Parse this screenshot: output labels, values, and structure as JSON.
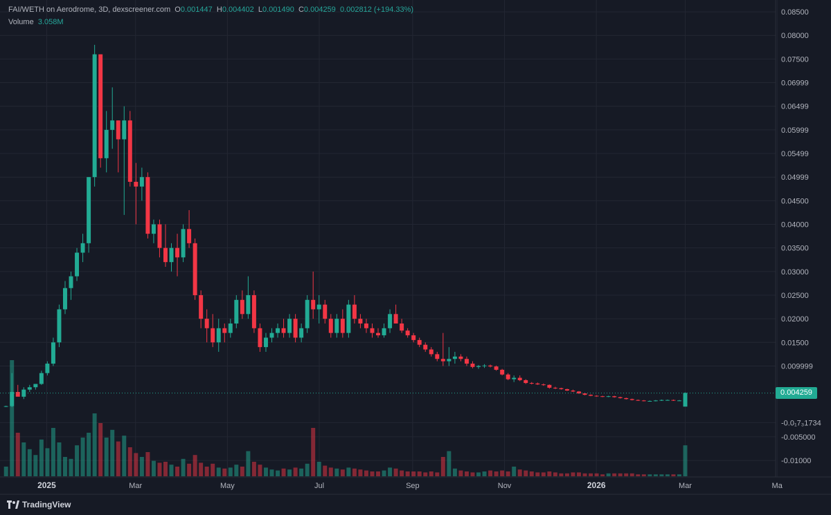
{
  "legend": {
    "title": "FAI/WETH on Aerodrome, 3D, dexscreener.com",
    "o_label": "O",
    "o_value": "0.001447",
    "h_label": "H",
    "h_value": "0.004402",
    "l_label": "L",
    "l_value": "0.001490",
    "c_label": "C",
    "c_value": "0.004259",
    "change": "0.002812 (+194.33%)",
    "volume_label": "Volume",
    "volume_value": "3.058M"
  },
  "price_tag": "0.004259",
  "brand": "TradingView",
  "colors": {
    "up": "#22ab94",
    "down": "#f23645",
    "bg": "#161a25",
    "grid": "#232733"
  },
  "chart_data": {
    "type": "candlestick",
    "y_axis": {
      "range": [
        -0.0135,
        0.0875
      ],
      "ticks": [
        {
          "value": 0.085,
          "label": "0.08500"
        },
        {
          "value": 0.08,
          "label": "0.08000"
        },
        {
          "value": 0.075,
          "label": "0.07500"
        },
        {
          "value": 0.07,
          "label": "0.06999"
        },
        {
          "value": 0.065,
          "label": "0.06499"
        },
        {
          "value": 0.06,
          "label": "0.05999"
        },
        {
          "value": 0.055,
          "label": "0.05499"
        },
        {
          "value": 0.05,
          "label": "0.04999"
        },
        {
          "value": 0.045,
          "label": "0.04500"
        },
        {
          "value": 0.04,
          "label": "0.04000"
        },
        {
          "value": 0.035,
          "label": "0.03500"
        },
        {
          "value": 0.03,
          "label": "0.03000"
        },
        {
          "value": 0.025,
          "label": "0.02500"
        },
        {
          "value": 0.02,
          "label": "0.02000"
        },
        {
          "value": 0.015,
          "label": "0.01500"
        },
        {
          "value": 0.01,
          "label": "0.009999"
        },
        {
          "value": -0.002,
          "label": "-0.0₁7₃1734"
        },
        {
          "value": -0.005,
          "label": "-0.005000"
        },
        {
          "value": -0.01,
          "label": "-0.01000"
        }
      ]
    },
    "x_axis": {
      "start": "2024-12-01",
      "end": "2026-04-30",
      "ticks": [
        {
          "date": "2025-01-01",
          "label": "2025",
          "bold": true
        },
        {
          "date": "2025-03-01",
          "label": "Mar",
          "bold": false
        },
        {
          "date": "2025-05-01",
          "label": "May",
          "bold": false
        },
        {
          "date": "2025-07-01",
          "label": "Jul",
          "bold": false
        },
        {
          "date": "2025-09-01",
          "label": "Sep",
          "bold": false
        },
        {
          "date": "2025-11-01",
          "label": "Nov",
          "bold": false
        },
        {
          "date": "2026-01-01",
          "label": "2026",
          "bold": true
        },
        {
          "date": "2026-03-01",
          "label": "Mar",
          "bold": false
        },
        {
          "date": "2026-05-01",
          "label": "Ma",
          "bold": false
        }
      ]
    },
    "last_price": 0.004259,
    "interval": "3D",
    "first_candle": "2024-12-05",
    "candles": [
      [
        0.0015,
        0.0016,
        0.0013,
        0.0015,
        1.0
      ],
      [
        0.0015,
        0.0085,
        0.0013,
        0.0045,
        12.0
      ],
      [
        0.0045,
        0.006,
        0.004,
        0.0035,
        4.5
      ],
      [
        0.0035,
        0.0055,
        0.003,
        0.005,
        3.5
      ],
      [
        0.005,
        0.006,
        0.0045,
        0.0055,
        2.8
      ],
      [
        0.0055,
        0.006,
        0.005,
        0.0062,
        2.2
      ],
      [
        0.0062,
        0.009,
        0.006,
        0.0085,
        3.8
      ],
      [
        0.0085,
        0.011,
        0.008,
        0.0105,
        2.9
      ],
      [
        0.0105,
        0.016,
        0.01,
        0.015,
        5.0
      ],
      [
        0.015,
        0.023,
        0.014,
        0.022,
        3.5
      ],
      [
        0.022,
        0.028,
        0.021,
        0.0265,
        2.0
      ],
      [
        0.0265,
        0.03,
        0.024,
        0.029,
        1.8
      ],
      [
        0.029,
        0.035,
        0.028,
        0.034,
        3.2
      ],
      [
        0.034,
        0.038,
        0.032,
        0.036,
        4.0
      ],
      [
        0.036,
        0.05,
        0.034,
        0.05,
        4.5
      ],
      [
        0.05,
        0.078,
        0.048,
        0.076,
        6.5
      ],
      [
        0.076,
        0.076,
        0.052,
        0.054,
        5.5
      ],
      [
        0.054,
        0.064,
        0.051,
        0.06,
        4.0
      ],
      [
        0.06,
        0.069,
        0.056,
        0.062,
        4.8
      ],
      [
        0.062,
        0.062,
        0.051,
        0.058,
        3.6
      ],
      [
        0.058,
        0.065,
        0.042,
        0.062,
        4.2
      ],
      [
        0.062,
        0.064,
        0.048,
        0.049,
        3.0
      ],
      [
        0.049,
        0.053,
        0.04,
        0.048,
        2.4
      ],
      [
        0.048,
        0.052,
        0.045,
        0.05,
        2.0
      ],
      [
        0.05,
        0.051,
        0.037,
        0.038,
        2.5
      ],
      [
        0.038,
        0.041,
        0.036,
        0.04,
        1.6
      ],
      [
        0.04,
        0.041,
        0.033,
        0.035,
        1.4
      ],
      [
        0.035,
        0.04,
        0.031,
        0.032,
        1.5
      ],
      [
        0.032,
        0.036,
        0.03,
        0.035,
        1.2
      ],
      [
        0.035,
        0.038,
        0.029,
        0.033,
        1.0
      ],
      [
        0.033,
        0.04,
        0.032,
        0.039,
        1.8
      ],
      [
        0.039,
        0.043,
        0.035,
        0.036,
        1.3
      ],
      [
        0.036,
        0.037,
        0.024,
        0.025,
        2.2
      ],
      [
        0.025,
        0.026,
        0.018,
        0.02,
        1.4
      ],
      [
        0.02,
        0.022,
        0.015,
        0.018,
        1.0
      ],
      [
        0.018,
        0.021,
        0.014,
        0.015,
        1.3
      ],
      [
        0.015,
        0.02,
        0.013,
        0.018,
        0.9
      ],
      [
        0.018,
        0.019,
        0.015,
        0.017,
        0.8
      ],
      [
        0.017,
        0.02,
        0.016,
        0.019,
        0.9
      ],
      [
        0.019,
        0.025,
        0.018,
        0.024,
        1.2
      ],
      [
        0.024,
        0.026,
        0.02,
        0.021,
        1.0
      ],
      [
        0.021,
        0.029,
        0.02,
        0.025,
        2.6
      ],
      [
        0.025,
        0.026,
        0.017,
        0.018,
        1.5
      ],
      [
        0.018,
        0.019,
        0.013,
        0.014,
        1.2
      ],
      [
        0.014,
        0.017,
        0.013,
        0.016,
        0.9
      ],
      [
        0.016,
        0.018,
        0.015,
        0.017,
        0.7
      ],
      [
        0.017,
        0.019,
        0.016,
        0.018,
        0.6
      ],
      [
        0.018,
        0.02,
        0.016,
        0.017,
        0.8
      ],
      [
        0.017,
        0.021,
        0.016,
        0.02,
        0.7
      ],
      [
        0.02,
        0.021,
        0.015,
        0.016,
        0.9
      ],
      [
        0.016,
        0.019,
        0.015,
        0.018,
        0.8
      ],
      [
        0.018,
        0.025,
        0.017,
        0.024,
        1.3
      ],
      [
        0.024,
        0.03,
        0.02,
        0.022,
        5.0
      ],
      [
        0.022,
        0.025,
        0.019,
        0.023,
        1.5
      ],
      [
        0.023,
        0.024,
        0.019,
        0.02,
        1.1
      ],
      [
        0.02,
        0.021,
        0.016,
        0.017,
        0.9
      ],
      [
        0.017,
        0.021,
        0.016,
        0.02,
        0.8
      ],
      [
        0.02,
        0.022,
        0.016,
        0.017,
        0.7
      ],
      [
        0.017,
        0.024,
        0.016,
        0.023,
        0.9
      ],
      [
        0.023,
        0.025,
        0.019,
        0.02,
        0.8
      ],
      [
        0.02,
        0.021,
        0.018,
        0.019,
        0.7
      ],
      [
        0.019,
        0.02,
        0.017,
        0.018,
        0.6
      ],
      [
        0.018,
        0.019,
        0.016,
        0.017,
        0.5
      ],
      [
        0.017,
        0.018,
        0.016,
        0.0165,
        0.5
      ],
      [
        0.0165,
        0.019,
        0.016,
        0.018,
        0.6
      ],
      [
        0.018,
        0.022,
        0.017,
        0.021,
        0.9
      ],
      [
        0.021,
        0.023,
        0.019,
        0.019,
        0.8
      ],
      [
        0.019,
        0.02,
        0.017,
        0.0175,
        0.6
      ],
      [
        0.0175,
        0.018,
        0.016,
        0.0165,
        0.5
      ],
      [
        0.0165,
        0.017,
        0.015,
        0.0155,
        0.5
      ],
      [
        0.0155,
        0.016,
        0.014,
        0.0145,
        0.5
      ],
      [
        0.0145,
        0.015,
        0.013,
        0.0135,
        0.4
      ],
      [
        0.0135,
        0.014,
        0.012,
        0.0125,
        0.5
      ],
      [
        0.0125,
        0.013,
        0.011,
        0.0115,
        0.4
      ],
      [
        0.0115,
        0.017,
        0.01,
        0.011,
        2.0
      ],
      [
        0.011,
        0.014,
        0.01,
        0.0115,
        2.6
      ],
      [
        0.0115,
        0.013,
        0.0105,
        0.012,
        0.8
      ],
      [
        0.012,
        0.0125,
        0.011,
        0.0115,
        0.6
      ],
      [
        0.0115,
        0.012,
        0.01,
        0.0105,
        0.5
      ],
      [
        0.0105,
        0.011,
        0.0095,
        0.0098,
        0.4
      ],
      [
        0.0098,
        0.0102,
        0.0094,
        0.01,
        0.4
      ],
      [
        0.01,
        0.0104,
        0.0096,
        0.0101,
        0.5
      ],
      [
        0.0101,
        0.0103,
        0.0097,
        0.0099,
        0.6
      ],
      [
        0.0099,
        0.0101,
        0.009,
        0.0092,
        0.5
      ],
      [
        0.0092,
        0.0094,
        0.008,
        0.0082,
        0.6
      ],
      [
        0.0082,
        0.0085,
        0.007,
        0.0072,
        0.5
      ],
      [
        0.0072,
        0.008,
        0.0066,
        0.0075,
        1.0
      ],
      [
        0.0075,
        0.008,
        0.0068,
        0.007,
        0.7
      ],
      [
        0.007,
        0.0072,
        0.0062,
        0.0064,
        0.6
      ],
      [
        0.0064,
        0.0066,
        0.0061,
        0.0063,
        0.5
      ],
      [
        0.0063,
        0.0065,
        0.006,
        0.0061,
        0.4
      ],
      [
        0.0061,
        0.0063,
        0.0058,
        0.006,
        0.4
      ],
      [
        0.006,
        0.0061,
        0.0052,
        0.0054,
        0.5
      ],
      [
        0.0054,
        0.0056,
        0.0051,
        0.0053,
        0.4
      ],
      [
        0.0053,
        0.0054,
        0.005,
        0.0051,
        0.3
      ],
      [
        0.0051,
        0.0052,
        0.0047,
        0.0048,
        0.3
      ],
      [
        0.0048,
        0.005,
        0.0045,
        0.0046,
        0.4
      ],
      [
        0.0046,
        0.0047,
        0.0041,
        0.0042,
        0.4
      ],
      [
        0.0042,
        0.0043,
        0.0038,
        0.0039,
        0.3
      ],
      [
        0.0039,
        0.004,
        0.0036,
        0.0037,
        0.3
      ],
      [
        0.0037,
        0.0038,
        0.0035,
        0.0036,
        0.3
      ],
      [
        0.0036,
        0.0037,
        0.0034,
        0.0035,
        0.2
      ],
      [
        0.0035,
        0.0037,
        0.0034,
        0.0036,
        0.3
      ],
      [
        0.0036,
        0.0037,
        0.0033,
        0.0034,
        0.3
      ],
      [
        0.0034,
        0.0035,
        0.0031,
        0.0032,
        0.3
      ],
      [
        0.0032,
        0.0033,
        0.0029,
        0.003,
        0.3
      ],
      [
        0.003,
        0.0031,
        0.0027,
        0.0028,
        0.3
      ],
      [
        0.0028,
        0.0029,
        0.0026,
        0.0027,
        0.2
      ],
      [
        0.0027,
        0.0028,
        0.0025,
        0.0026,
        0.2
      ],
      [
        0.0026,
        0.0027,
        0.0025,
        0.0026,
        0.2
      ],
      [
        0.0026,
        0.0028,
        0.0025,
        0.0027,
        0.2
      ],
      [
        0.0027,
        0.0029,
        0.0026,
        0.0028,
        0.2
      ],
      [
        0.0028,
        0.0029,
        0.0027,
        0.0028,
        0.2
      ],
      [
        0.0028,
        0.0029,
        0.0026,
        0.0027,
        0.2
      ],
      [
        0.0027,
        0.0028,
        0.0026,
        0.0027,
        0.2
      ],
      [
        0.0014,
        0.0044,
        0.0015,
        0.0043,
        3.2
      ]
    ]
  }
}
